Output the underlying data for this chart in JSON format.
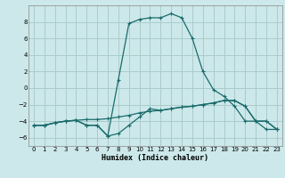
{
  "xlabel": "Humidex (Indice chaleur)",
  "bg_color": "#cce8ea",
  "grid_color": "#aacccc",
  "line_color": "#1a6b6b",
  "xlim": [
    -0.5,
    23.5
  ],
  "ylim": [
    -7,
    10
  ],
  "xticks": [
    0,
    1,
    2,
    3,
    4,
    5,
    6,
    7,
    8,
    9,
    10,
    11,
    12,
    13,
    14,
    15,
    16,
    17,
    18,
    19,
    20,
    21,
    22,
    23
  ],
  "yticks": [
    -6,
    -4,
    -2,
    0,
    2,
    4,
    6,
    8
  ],
  "series1_x": [
    0,
    1,
    2,
    3,
    4,
    5,
    6,
    7,
    8,
    9,
    10,
    11,
    12,
    13,
    14,
    15,
    16,
    17,
    18,
    19,
    20,
    21,
    22,
    23
  ],
  "series1_y": [
    -4.5,
    -4.5,
    -4.2,
    -4.0,
    -3.9,
    -3.8,
    -3.8,
    -3.7,
    -3.5,
    -3.3,
    -3.0,
    -2.8,
    -2.7,
    -2.5,
    -2.3,
    -2.2,
    -2.0,
    -1.8,
    -1.5,
    -1.5,
    -2.2,
    -4.0,
    -4.0,
    -5.0
  ],
  "series2_x": [
    0,
    1,
    2,
    3,
    4,
    5,
    6,
    7,
    8,
    9,
    10,
    11,
    12,
    13,
    14,
    15,
    16,
    17,
    18,
    19,
    20,
    21,
    22,
    23
  ],
  "series2_y": [
    -4.5,
    -4.5,
    -4.2,
    -4.0,
    -3.9,
    -4.5,
    -4.5,
    -5.8,
    -5.5,
    -4.5,
    -3.5,
    -2.5,
    -2.7,
    -2.5,
    -2.3,
    -2.2,
    -2.0,
    -1.8,
    -1.5,
    -1.5,
    -2.2,
    -4.0,
    -4.0,
    -5.0
  ],
  "series3_x": [
    0,
    1,
    2,
    3,
    4,
    5,
    6,
    7,
    8,
    9,
    10,
    11,
    12,
    13,
    14,
    15,
    16,
    17,
    18,
    19,
    20,
    21,
    22,
    23
  ],
  "series3_y": [
    -4.5,
    -4.5,
    -4.2,
    -4.0,
    -3.9,
    -4.5,
    -4.5,
    -5.8,
    1.0,
    7.8,
    8.3,
    8.5,
    8.5,
    9.0,
    8.5,
    6.0,
    2.0,
    -0.2,
    -1.0,
    -2.2,
    -4.0,
    -4.0,
    -5.0,
    -5.0
  ]
}
